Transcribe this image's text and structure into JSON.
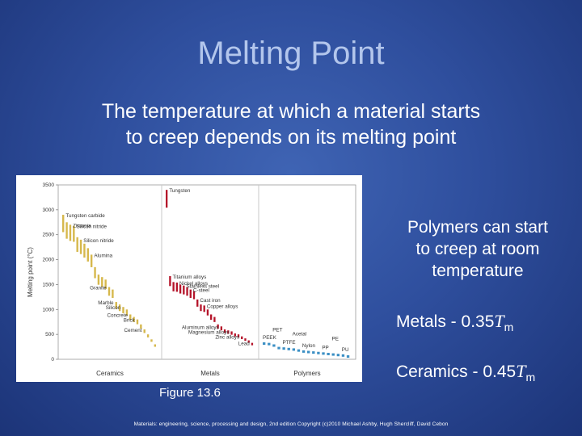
{
  "slide": {
    "title": "Melting Point",
    "subtitle_line1": "The temperature at which a material starts",
    "subtitle_line2": "to creep depends on its melting point",
    "polymers_note_line1": "Polymers can start",
    "polymers_note_line2": "to creep at room",
    "polymers_note_line3": "temperature",
    "metals_prefix": "Metals - 0.35",
    "ceramics_prefix": "Ceramics - 0.45",
    "tm_symbol": "T",
    "tm_subscript": "m",
    "figure_caption": "Figure 13.6",
    "copyright": "Materials: engineering, science, processing and design, 2nd edition Copyright (c)2010 Michael Ashby, Hugh Shercliff, David Cebon"
  },
  "colors": {
    "ceramics": "#d6b84c",
    "metals": "#b5142a",
    "polymers": "#3b8fc4",
    "divider": "#c8c8c8"
  },
  "chart_data": {
    "type": "bar",
    "ylabel": "Melting point (°C)",
    "ylim": [
      0,
      3500
    ],
    "yticks": [
      0,
      500,
      1000,
      1500,
      2000,
      2500,
      3000,
      3500
    ],
    "grid": false,
    "groups": [
      {
        "name": "Ceramics",
        "series": "ceramics",
        "values": [
          2900,
          2750,
          2700,
          2680,
          2450,
          2400,
          2320,
          2230,
          2100,
          1850,
          1700,
          1650,
          1600,
          1450,
          1400,
          1150,
          1100,
          1050,
          1000,
          900,
          850,
          800,
          700,
          600,
          500,
          400,
          300
        ],
        "labels": [
          {
            "text": "Tungsten carbide",
            "index": 0
          },
          {
            "text": "Zirconia",
            "index": 2
          },
          {
            "text": "Silicon nitride",
            "index": 3
          },
          {
            "text": "Silicon nitride",
            "index": 5
          },
          {
            "text": "Alumina",
            "index": 8
          },
          {
            "text": "Granite",
            "index": 13
          },
          {
            "text": "Marble",
            "index": 15
          },
          {
            "text": "Silicon",
            "index": 17
          },
          {
            "text": "Concrete",
            "index": 19
          },
          {
            "text": "Brick",
            "index": 21
          },
          {
            "text": "Cement",
            "index": 23
          }
        ]
      },
      {
        "name": "Metals",
        "series": "metals",
        "values": [
          3400,
          1670,
          1550,
          1540,
          1500,
          1480,
          1450,
          1400,
          1370,
          1200,
          1100,
          1080,
          1000,
          900,
          850,
          700,
          660,
          600,
          580,
          560,
          520,
          500,
          460,
          420,
          380,
          330
        ],
        "labels": [
          {
            "text": "Tungsten",
            "index": 0
          },
          {
            "text": "Titanium alloys",
            "index": 1
          },
          {
            "text": "Nickel alloys",
            "index": 3
          },
          {
            "text": "Stainless steel",
            "index": 5
          },
          {
            "text": "C-steel",
            "index": 7
          },
          {
            "text": "Cast iron",
            "index": 9
          },
          {
            "text": "Copper alloys",
            "index": 11
          },
          {
            "text": "Aluminum alloys",
            "index": 16
          },
          {
            "text": "Magnesium alloys",
            "index": 19
          },
          {
            "text": "Zinc alloys",
            "index": 22
          },
          {
            "text": "Lead",
            "index": 25
          }
        ]
      },
      {
        "name": "Polymers",
        "series": "polymers",
        "values": [
          340,
          330,
          300,
          250,
          240,
          230,
          220,
          200,
          180,
          170,
          160,
          150,
          140,
          130,
          120,
          110,
          100,
          80
        ],
        "labels": [
          {
            "text": "PEEK",
            "index": 0
          },
          {
            "text": "PET",
            "index": 2
          },
          {
            "text": "PTFE",
            "index": 4
          },
          {
            "text": "Acetal",
            "index": 6
          },
          {
            "text": "Nylon",
            "index": 8
          },
          {
            "text": "PP",
            "index": 12
          },
          {
            "text": "PE",
            "index": 14
          },
          {
            "text": "PU",
            "index": 16
          }
        ]
      }
    ]
  }
}
